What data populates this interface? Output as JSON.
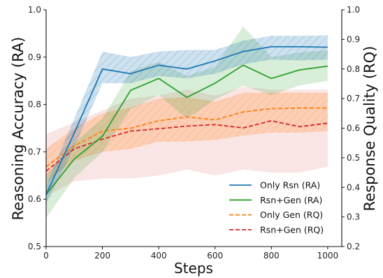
{
  "chart_data": {
    "type": "line",
    "title": "",
    "xlabel": "Steps",
    "ylabel": "Reasoning Accuracy (RA)",
    "ylabel_right": "Response Quality (RQ)",
    "xlim": [
      0,
      1050
    ],
    "ylim": [
      0.5,
      1.0
    ],
    "ylim_right": [
      0.2,
      1.0
    ],
    "x_ticks": [
      0,
      200,
      400,
      600,
      800,
      1000
    ],
    "y_ticks": [
      0.5,
      0.6,
      0.7,
      0.8,
      0.9,
      1.0
    ],
    "y_ticks_right": [
      0.2,
      0.3,
      0.4,
      0.5,
      0.6,
      0.7,
      0.8,
      0.9,
      1.0
    ],
    "grid": false,
    "legend_position": "lower-right",
    "x": [
      0,
      100,
      200,
      300,
      400,
      500,
      600,
      700,
      800,
      900,
      1000
    ],
    "series": [
      {
        "name": "Only Rsn (RA)",
        "axis": "left",
        "color": "#1f77b4",
        "dash": "solid",
        "values": [
          0.61,
          0.74,
          0.875,
          0.865,
          0.883,
          0.875,
          0.892,
          0.912,
          0.922,
          0.922,
          0.921
        ],
        "lower": [
          0.59,
          0.71,
          0.845,
          0.845,
          0.86,
          0.855,
          0.865,
          0.885,
          0.895,
          0.893,
          0.895
        ],
        "upper": [
          0.63,
          0.77,
          0.912,
          0.9,
          0.912,
          0.915,
          0.915,
          0.935,
          0.945,
          0.945,
          0.946
        ]
      },
      {
        "name": "Rsn+Gen (RA)",
        "axis": "left",
        "color": "#2ca02c",
        "dash": "solid",
        "values": [
          0.61,
          0.685,
          0.733,
          0.83,
          0.855,
          0.815,
          0.845,
          0.883,
          0.855,
          0.873,
          0.881
        ],
        "lower": [
          0.56,
          0.645,
          0.7,
          0.79,
          0.82,
          0.77,
          0.81,
          0.84,
          0.82,
          0.84,
          0.85
        ],
        "upper": [
          0.65,
          0.72,
          0.77,
          0.87,
          0.89,
          0.86,
          0.88,
          0.965,
          0.9,
          0.91,
          0.915
        ]
      },
      {
        "name": "Only Gen (RQ)",
        "axis": "right",
        "color": "#ff7f0e",
        "dash": "dashed",
        "values": [
          0.47,
          0.54,
          0.59,
          0.6,
          0.625,
          0.638,
          0.628,
          0.655,
          0.666,
          0.668,
          0.668
        ],
        "lower": [
          0.42,
          0.49,
          0.52,
          0.53,
          0.555,
          0.555,
          0.56,
          0.575,
          0.585,
          0.585,
          0.59
        ],
        "upper": [
          0.53,
          0.6,
          0.65,
          0.67,
          0.7,
          0.705,
          0.69,
          0.72,
          0.72,
          0.72,
          0.72
        ]
      },
      {
        "name": "Rsn+Gen (RQ)",
        "axis": "right",
        "color": "#d62728",
        "dash": "dashed",
        "values": [
          0.455,
          0.53,
          0.563,
          0.59,
          0.598,
          0.607,
          0.612,
          0.601,
          0.625,
          0.605,
          0.617
        ],
        "lower": [
          0.37,
          0.42,
          0.43,
          0.43,
          0.44,
          0.46,
          0.44,
          0.46,
          0.45,
          0.45,
          0.47
        ],
        "upper": [
          0.58,
          0.62,
          0.66,
          0.7,
          0.71,
          0.73,
          0.71,
          0.74,
          0.73,
          0.73,
          0.73
        ]
      }
    ]
  }
}
